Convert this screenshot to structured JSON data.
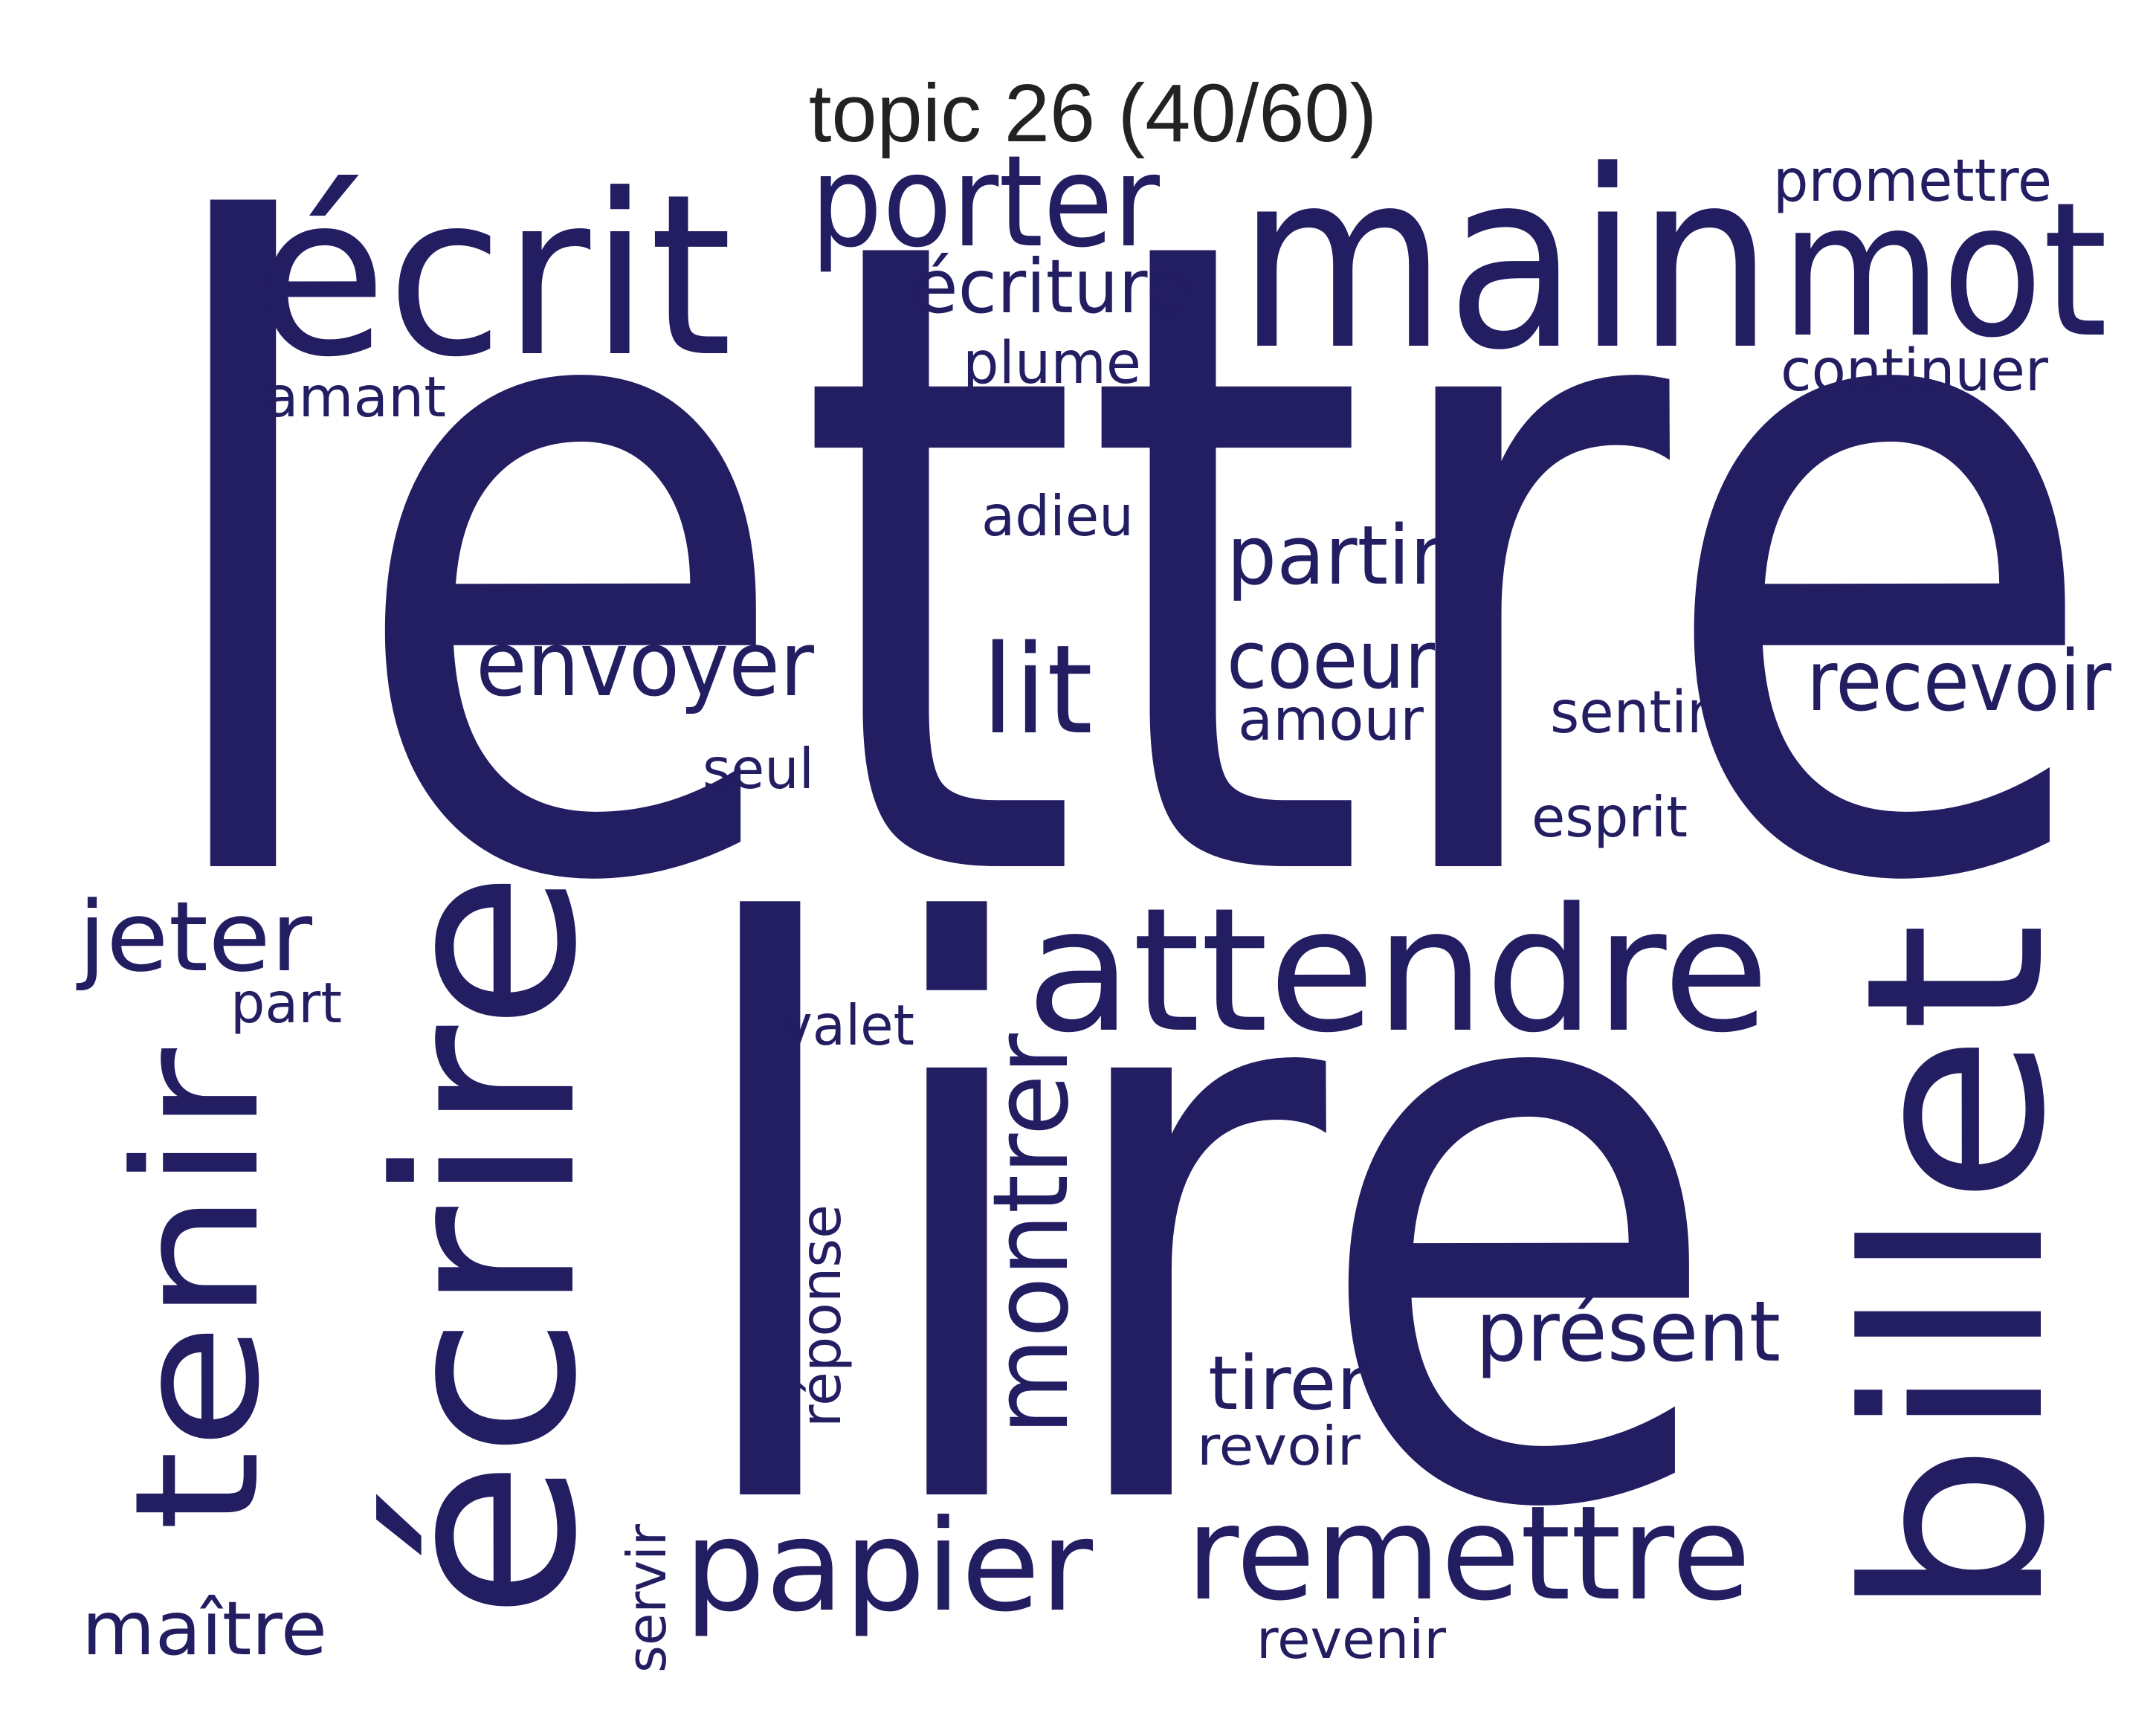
{
  "title": "topic 26 (40/60)",
  "colors": {
    "text": "#231d62",
    "title": "#222222",
    "background": "#ffffff"
  },
  "words": [
    {
      "text": "lettre"
    },
    {
      "text": "lire"
    },
    {
      "text": "écrire"
    },
    {
      "text": "main"
    },
    {
      "text": "écrit"
    },
    {
      "text": "billet"
    },
    {
      "text": "mot"
    },
    {
      "text": "attendre"
    },
    {
      "text": "porter"
    },
    {
      "text": "tenir"
    },
    {
      "text": "remettre"
    },
    {
      "text": "papier"
    },
    {
      "text": "montrer"
    },
    {
      "text": "lit"
    },
    {
      "text": "envoyer"
    },
    {
      "text": "recevoir"
    },
    {
      "text": "jeter"
    },
    {
      "text": "présent"
    },
    {
      "text": "partir"
    },
    {
      "text": "coeur"
    },
    {
      "text": "écriture"
    },
    {
      "text": "tirer"
    },
    {
      "text": "maître"
    },
    {
      "text": "promettre"
    },
    {
      "text": "continuer"
    },
    {
      "text": "plume"
    },
    {
      "text": "adieu"
    },
    {
      "text": "amant"
    },
    {
      "text": "amour"
    },
    {
      "text": "sentir"
    },
    {
      "text": "seul"
    },
    {
      "text": "esprit"
    },
    {
      "text": "part"
    },
    {
      "text": "valet"
    },
    {
      "text": "réponse"
    },
    {
      "text": "revoir"
    },
    {
      "text": "revenir"
    },
    {
      "text": "servir"
    }
  ]
}
